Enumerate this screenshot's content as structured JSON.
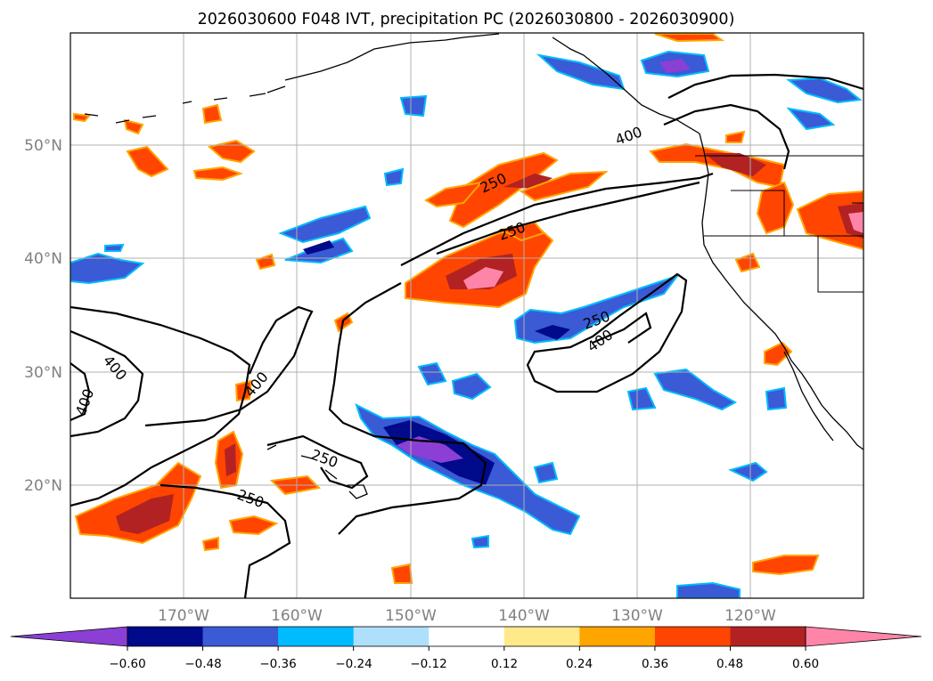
{
  "title": "2026030600 F048 IVT, precipitation PC (2026030800 - 2026030900)",
  "map": {
    "lon_range": [
      -180,
      -110
    ],
    "lat_range": [
      10,
      60
    ],
    "lat_labels": [
      {
        "lat": 50,
        "text": "50°N"
      },
      {
        "lat": 40,
        "text": "40°N"
      },
      {
        "lat": 30,
        "text": "30°N"
      },
      {
        "lat": 20,
        "text": "20°N"
      }
    ],
    "lon_labels": [
      {
        "lon": -170,
        "text": "170°W"
      },
      {
        "lon": -160,
        "text": "160°W"
      },
      {
        "lon": -150,
        "text": "150°W"
      },
      {
        "lon": -140,
        "text": "140°W"
      },
      {
        "lon": -130,
        "text": "130°W"
      },
      {
        "lon": -120,
        "text": "120°W"
      }
    ],
    "ivt_contour_labels": [
      "400",
      "250",
      "250",
      "250",
      "400",
      "400",
      "250",
      "250",
      "400",
      "400"
    ]
  },
  "colorbar": {
    "ticks": [
      "−0.60",
      "−0.48",
      "−0.36",
      "−0.24",
      "−0.12",
      "0.12",
      "0.24",
      "0.36",
      "0.48",
      "0.60"
    ],
    "colors": [
      "#8b3fd4",
      "#000a8a",
      "#3a5ad6",
      "#00bbff",
      "#aee0fb",
      "#ffffff",
      "#ffe98a",
      "#ffa500",
      "#ff4500",
      "#b22222",
      "#ff85a8"
    ],
    "extend": "both"
  }
}
